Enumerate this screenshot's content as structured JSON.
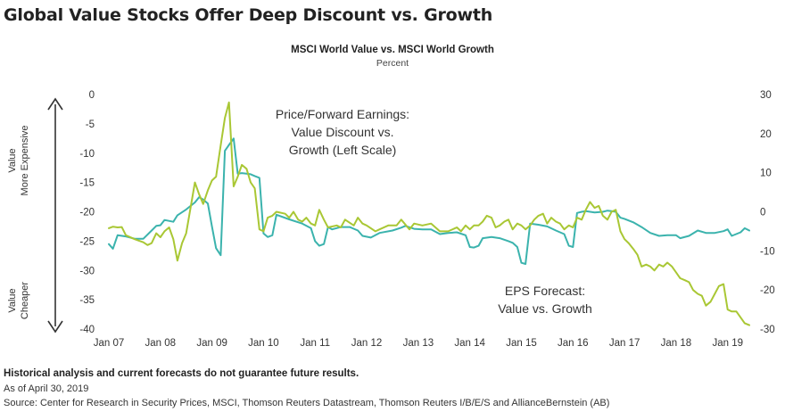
{
  "title": "Global Value Stocks Offer Deep Discount vs. Growth",
  "chart_data": {
    "type": "line",
    "title": "MSCI World Value vs. MSCI World Growth",
    "subtitle": "Percent",
    "left_axis": {
      "ylim": [
        -40,
        0
      ],
      "ticks": [
        0,
        -5,
        -10,
        -15,
        -20,
        -25,
        -30,
        -35,
        -40
      ]
    },
    "right_axis": {
      "ylim": [
        -30,
        30
      ],
      "ticks": [
        30,
        20,
        10,
        0,
        -10,
        -20,
        -30
      ]
    },
    "x_ticks": [
      "Jan 07",
      "Jan 08",
      "Jan 09",
      "Jan 10",
      "Jan 11",
      "Jan 12",
      "Jan 13",
      "Jan 14",
      "Jan 15",
      "Jan 16",
      "Jan 17",
      "Jan 18",
      "Jan 19"
    ],
    "left_side_labels": {
      "top": [
        "Value",
        "More Expensive"
      ],
      "bottom": [
        "Value",
        "Cheaper"
      ]
    },
    "annotations": {
      "pe": [
        "Price/Forward Earnings:",
        "Value Discount vs.",
        "Growth (Left Scale)"
      ],
      "eps": [
        "EPS Forecast:",
        "Value vs. Growth"
      ]
    },
    "colors": {
      "pe": "#3bb3ad",
      "eps": "#a9c734",
      "axis": "#444444",
      "text": "#333333"
    },
    "series": [
      {
        "name": "Price/Forward Earnings: Value Discount vs. Growth",
        "axis": "left",
        "points": [
          [
            2007.0,
            -25.5
          ],
          [
            2007.08,
            -26.3
          ],
          [
            2007.17,
            -24.0
          ],
          [
            2007.33,
            -24.2
          ],
          [
            2007.5,
            -24.6
          ],
          [
            2007.67,
            -24.6
          ],
          [
            2007.83,
            -23.2
          ],
          [
            2007.92,
            -22.4
          ],
          [
            2008.0,
            -22.3
          ],
          [
            2008.08,
            -21.4
          ],
          [
            2008.25,
            -21.7
          ],
          [
            2008.33,
            -20.6
          ],
          [
            2008.5,
            -19.6
          ],
          [
            2008.67,
            -18.4
          ],
          [
            2008.75,
            -17.5
          ],
          [
            2008.83,
            -17.9
          ],
          [
            2008.92,
            -18.6
          ],
          [
            2009.0,
            -22.5
          ],
          [
            2009.08,
            -26.2
          ],
          [
            2009.17,
            -27.4
          ],
          [
            2009.25,
            -9.6
          ],
          [
            2009.33,
            -8.6
          ],
          [
            2009.42,
            -7.5
          ],
          [
            2009.5,
            -13.5
          ],
          [
            2009.58,
            -13.4
          ],
          [
            2009.67,
            -13.5
          ],
          [
            2009.75,
            -13.6
          ],
          [
            2009.83,
            -13.9
          ],
          [
            2009.92,
            -14.2
          ],
          [
            2010.0,
            -23.7
          ],
          [
            2010.08,
            -24.3
          ],
          [
            2010.17,
            -24.0
          ],
          [
            2010.25,
            -20.5
          ],
          [
            2010.5,
            -21.3
          ],
          [
            2010.75,
            -22.0
          ],
          [
            2010.92,
            -22.8
          ],
          [
            2011.0,
            -25.0
          ],
          [
            2011.08,
            -25.8
          ],
          [
            2011.17,
            -25.5
          ],
          [
            2011.25,
            -22.6
          ],
          [
            2011.33,
            -23.0
          ],
          [
            2011.5,
            -22.6
          ],
          [
            2011.67,
            -22.6
          ],
          [
            2011.83,
            -23.2
          ],
          [
            2011.92,
            -24.1
          ],
          [
            2012.08,
            -24.4
          ],
          [
            2012.25,
            -23.6
          ],
          [
            2012.5,
            -23.2
          ],
          [
            2012.67,
            -22.7
          ],
          [
            2012.75,
            -22.4
          ],
          [
            2012.92,
            -22.9
          ],
          [
            2013.08,
            -23.0
          ],
          [
            2013.25,
            -23.0
          ],
          [
            2013.42,
            -23.8
          ],
          [
            2013.58,
            -23.6
          ],
          [
            2013.75,
            -23.5
          ],
          [
            2013.92,
            -24.0
          ],
          [
            2014.0,
            -26.0
          ],
          [
            2014.08,
            -26.1
          ],
          [
            2014.17,
            -25.8
          ],
          [
            2014.25,
            -24.5
          ],
          [
            2014.42,
            -24.3
          ],
          [
            2014.58,
            -24.5
          ],
          [
            2014.75,
            -25.0
          ],
          [
            2014.83,
            -25.3
          ],
          [
            2014.92,
            -26.0
          ],
          [
            2015.0,
            -28.7
          ],
          [
            2015.08,
            -28.9
          ],
          [
            2015.17,
            -22.0
          ],
          [
            2015.33,
            -22.2
          ],
          [
            2015.5,
            -22.5
          ],
          [
            2015.67,
            -23.2
          ],
          [
            2015.83,
            -23.8
          ],
          [
            2015.92,
            -25.8
          ],
          [
            2016.0,
            -26.0
          ],
          [
            2016.08,
            -20.2
          ],
          [
            2016.17,
            -20.0
          ],
          [
            2016.25,
            -19.9
          ],
          [
            2016.42,
            -20.1
          ],
          [
            2016.58,
            -20.0
          ],
          [
            2016.67,
            -19.8
          ],
          [
            2016.75,
            -19.9
          ],
          [
            2016.83,
            -20.0
          ],
          [
            2016.92,
            -21.0
          ],
          [
            2017.0,
            -21.2
          ],
          [
            2017.17,
            -21.8
          ],
          [
            2017.33,
            -22.6
          ],
          [
            2017.5,
            -23.6
          ],
          [
            2017.67,
            -24.1
          ],
          [
            2017.83,
            -24.0
          ],
          [
            2018.0,
            -24.0
          ],
          [
            2018.08,
            -24.5
          ],
          [
            2018.25,
            -24.1
          ],
          [
            2018.42,
            -23.2
          ],
          [
            2018.58,
            -23.6
          ],
          [
            2018.75,
            -23.6
          ],
          [
            2018.92,
            -23.3
          ],
          [
            2019.0,
            -23.0
          ],
          [
            2019.08,
            -24.1
          ],
          [
            2019.25,
            -23.5
          ],
          [
            2019.33,
            -22.8
          ],
          [
            2019.42,
            -23.2
          ]
        ]
      },
      {
        "name": "EPS Forecast: Value vs. Growth",
        "axis": "right",
        "points": [
          [
            2007.0,
            -4.2
          ],
          [
            2007.08,
            -3.8
          ],
          [
            2007.17,
            -4.0
          ],
          [
            2007.25,
            -3.9
          ],
          [
            2007.33,
            -6.0
          ],
          [
            2007.5,
            -7.0
          ],
          [
            2007.67,
            -7.8
          ],
          [
            2007.75,
            -8.5
          ],
          [
            2007.83,
            -8.0
          ],
          [
            2007.92,
            -5.5
          ],
          [
            2008.0,
            -6.5
          ],
          [
            2008.08,
            -5.0
          ],
          [
            2008.17,
            -4.0
          ],
          [
            2008.25,
            -7.0
          ],
          [
            2008.33,
            -12.5
          ],
          [
            2008.42,
            -8.0
          ],
          [
            2008.5,
            -5.5
          ],
          [
            2008.67,
            7.5
          ],
          [
            2008.75,
            4.5
          ],
          [
            2008.83,
            2.0
          ],
          [
            2008.92,
            5.5
          ],
          [
            2009.0,
            8.0
          ],
          [
            2009.08,
            9.0
          ],
          [
            2009.17,
            17.0
          ],
          [
            2009.25,
            24.0
          ],
          [
            2009.33,
            28.0
          ],
          [
            2009.42,
            6.5
          ],
          [
            2009.5,
            9.0
          ],
          [
            2009.58,
            12.0
          ],
          [
            2009.67,
            11.0
          ],
          [
            2009.75,
            7.5
          ],
          [
            2009.83,
            6.0
          ],
          [
            2009.92,
            -4.5
          ],
          [
            2010.0,
            -5.0
          ],
          [
            2010.08,
            -1.5
          ],
          [
            2010.17,
            -1.0
          ],
          [
            2010.25,
            0.0
          ],
          [
            2010.42,
            -0.5
          ],
          [
            2010.5,
            -1.5
          ],
          [
            2010.58,
            0.0
          ],
          [
            2010.67,
            -2.0
          ],
          [
            2010.75,
            -2.5
          ],
          [
            2010.83,
            -1.5
          ],
          [
            2010.92,
            -3.0
          ],
          [
            2011.0,
            -3.5
          ],
          [
            2011.08,
            0.5
          ],
          [
            2011.17,
            -2.0
          ],
          [
            2011.25,
            -4.0
          ],
          [
            2011.42,
            -3.5
          ],
          [
            2011.5,
            -4.0
          ],
          [
            2011.58,
            -2.0
          ],
          [
            2011.75,
            -3.5
          ],
          [
            2011.83,
            -1.5
          ],
          [
            2011.92,
            -3.0
          ],
          [
            2012.0,
            -3.5
          ],
          [
            2012.17,
            -5.0
          ],
          [
            2012.25,
            -4.5
          ],
          [
            2012.42,
            -3.5
          ],
          [
            2012.58,
            -3.5
          ],
          [
            2012.67,
            -2.0
          ],
          [
            2012.83,
            -4.5
          ],
          [
            2012.92,
            -3.0
          ],
          [
            2013.08,
            -3.5
          ],
          [
            2013.25,
            -3.0
          ],
          [
            2013.42,
            -5.0
          ],
          [
            2013.58,
            -5.0
          ],
          [
            2013.75,
            -4.0
          ],
          [
            2013.83,
            -5.0
          ],
          [
            2013.92,
            -3.5
          ],
          [
            2014.0,
            -4.5
          ],
          [
            2014.08,
            -3.5
          ],
          [
            2014.17,
            -3.5
          ],
          [
            2014.25,
            -2.5
          ],
          [
            2014.33,
            -1.0
          ],
          [
            2014.42,
            -1.5
          ],
          [
            2014.5,
            -4.0
          ],
          [
            2014.58,
            -3.5
          ],
          [
            2014.67,
            -2.5
          ],
          [
            2014.75,
            -2.0
          ],
          [
            2014.83,
            -4.5
          ],
          [
            2014.92,
            -3.0
          ],
          [
            2015.0,
            -3.5
          ],
          [
            2015.08,
            -4.5
          ],
          [
            2015.17,
            -3.5
          ],
          [
            2015.25,
            -2.0
          ],
          [
            2015.33,
            -1.0
          ],
          [
            2015.42,
            -0.5
          ],
          [
            2015.5,
            -3.0
          ],
          [
            2015.58,
            -1.5
          ],
          [
            2015.67,
            -2.5
          ],
          [
            2015.75,
            -3.0
          ],
          [
            2015.83,
            -4.5
          ],
          [
            2015.92,
            -3.5
          ],
          [
            2016.0,
            -4.0
          ],
          [
            2016.08,
            -1.5
          ],
          [
            2016.17,
            -2.0
          ],
          [
            2016.25,
            0.5
          ],
          [
            2016.33,
            2.5
          ],
          [
            2016.42,
            1.0
          ],
          [
            2016.5,
            1.5
          ],
          [
            2016.58,
            -1.0
          ],
          [
            2016.67,
            -2.0
          ],
          [
            2016.75,
            0.0
          ],
          [
            2016.83,
            0.5
          ],
          [
            2016.92,
            -5.0
          ],
          [
            2017.0,
            -7.0
          ],
          [
            2017.08,
            -8.0
          ],
          [
            2017.17,
            -9.5
          ],
          [
            2017.25,
            -11.0
          ],
          [
            2017.33,
            -14.0
          ],
          [
            2017.42,
            -13.5
          ],
          [
            2017.5,
            -14.0
          ],
          [
            2017.58,
            -15.0
          ],
          [
            2017.67,
            -13.5
          ],
          [
            2017.75,
            -14.0
          ],
          [
            2017.83,
            -13.0
          ],
          [
            2017.92,
            -14.0
          ],
          [
            2018.0,
            -15.5
          ],
          [
            2018.08,
            -17.0
          ],
          [
            2018.17,
            -17.5
          ],
          [
            2018.25,
            -18.0
          ],
          [
            2018.33,
            -20.0
          ],
          [
            2018.42,
            -21.0
          ],
          [
            2018.5,
            -21.5
          ],
          [
            2018.58,
            -24.0
          ],
          [
            2018.67,
            -23.0
          ],
          [
            2018.75,
            -21.0
          ],
          [
            2018.83,
            -19.0
          ],
          [
            2018.92,
            -18.5
          ],
          [
            2019.0,
            -25.0
          ],
          [
            2019.08,
            -25.5
          ],
          [
            2019.17,
            -25.5
          ],
          [
            2019.25,
            -27.0
          ],
          [
            2019.33,
            -28.5
          ],
          [
            2019.42,
            -29.0
          ]
        ]
      }
    ]
  },
  "footer": {
    "note": "Historical analysis and current forecasts do not guarantee future results.",
    "as_of": "As of April 30, 2019",
    "source": "Source: Center for Research in Security Prices, MSCI, Thomson Reuters Datastream, Thomson Reuters I/B/E/S and AllianceBernstein (AB)"
  }
}
